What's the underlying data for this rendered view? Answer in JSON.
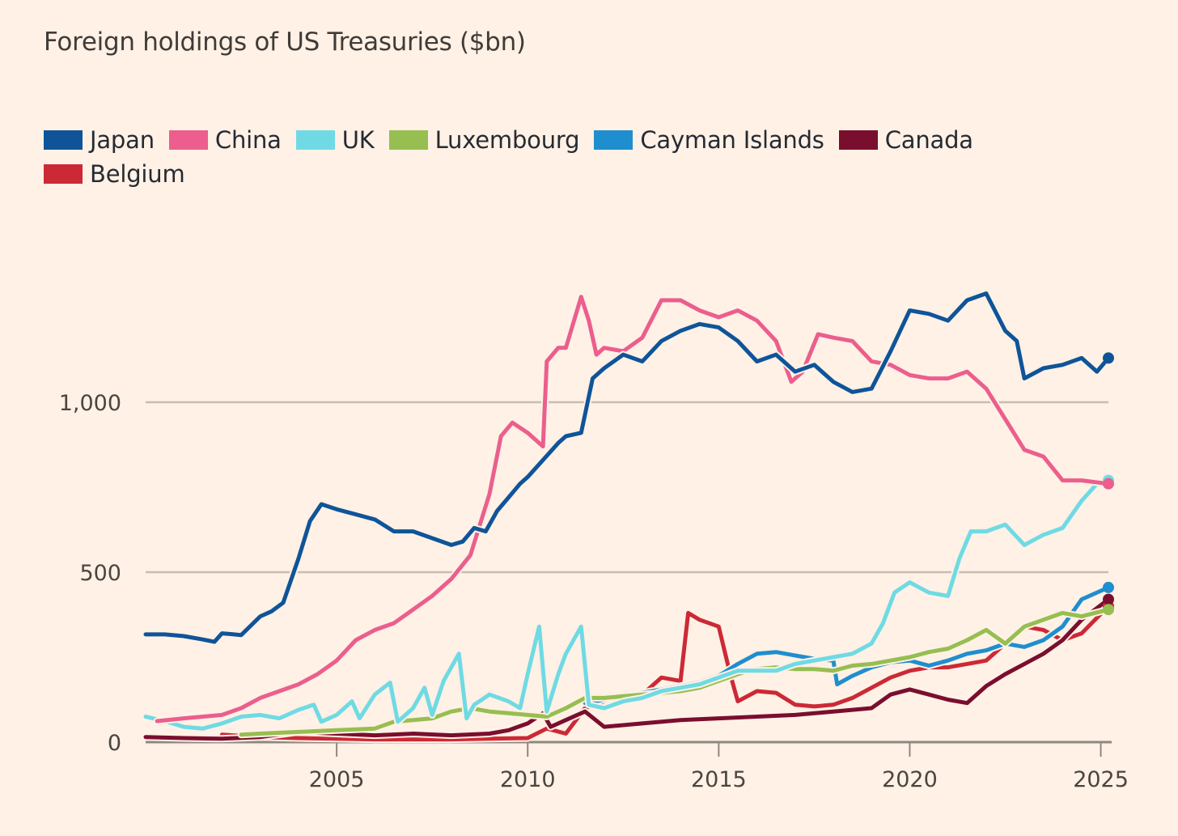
{
  "chart_data": {
    "type": "line",
    "title": "Foreign holdings of US Treasuries ($bn)",
    "xlabel": "",
    "ylabel": "",
    "xlim": [
      2000,
      2025.2
    ],
    "ylim": [
      0,
      1400
    ],
    "yticks": [
      0,
      500,
      1000
    ],
    "ytick_labels": [
      "0",
      "500",
      "1,000"
    ],
    "xticks": [
      2005,
      2010,
      2015,
      2020,
      2025
    ],
    "xtick_labels": [
      "2005",
      "2010",
      "2015",
      "2020",
      "2025"
    ],
    "grid": "horizontal",
    "legend_position": "top-left",
    "series": [
      {
        "name": "Japan",
        "color": "#0f5499",
        "x": [
          2000,
          2000.5,
          2001,
          2001.5,
          2001.8,
          2002,
          2002.2,
          2002.5,
          2003,
          2003.3,
          2003.6,
          2004,
          2004.3,
          2004.6,
          2005,
          2005.5,
          2006,
          2006.5,
          2007,
          2007.5,
          2008,
          2008.3,
          2008.6,
          2008.9,
          2009.2,
          2009.5,
          2009.8,
          2010,
          2010.4,
          2010.8,
          2011,
          2011.4,
          2011.7,
          2012,
          2012.5,
          2013,
          2013.5,
          2014,
          2014.5,
          2015,
          2015.5,
          2016,
          2016.5,
          2017,
          2017.5,
          2018,
          2018.5,
          2019,
          2019.5,
          2020,
          2020.5,
          2021,
          2021.5,
          2022,
          2022.5,
          2022.8,
          2023,
          2023.5,
          2024,
          2024.5,
          2024.9,
          2025.2
        ],
        "y": [
          317,
          317,
          312,
          302,
          295,
          320,
          318,
          315,
          370,
          385,
          410,
          540,
          650,
          700,
          685,
          670,
          655,
          620,
          620,
          600,
          580,
          590,
          630,
          620,
          680,
          720,
          760,
          780,
          830,
          880,
          900,
          910,
          1070,
          1100,
          1140,
          1120,
          1180,
          1210,
          1230,
          1220,
          1180,
          1120,
          1140,
          1090,
          1110,
          1060,
          1030,
          1040,
          1150,
          1270,
          1260,
          1240,
          1300,
          1320,
          1210,
          1180,
          1070,
          1100,
          1110,
          1130,
          1090,
          1130
        ]
      },
      {
        "name": "China",
        "color": "#eb5e8d",
        "x": [
          2000.3,
          2001,
          2001.5,
          2002,
          2002.5,
          2003,
          2003.5,
          2004,
          2004.5,
          2005,
          2005.5,
          2006,
          2006.5,
          2007,
          2007.5,
          2008,
          2008.5,
          2009,
          2009.3,
          2009.6,
          2010,
          2010.4,
          2010.5,
          2010.8,
          2011,
          2011.4,
          2011.6,
          2011.8,
          2012,
          2012.5,
          2013,
          2013.5,
          2014,
          2014.5,
          2015,
          2015.5,
          2016,
          2016.5,
          2016.9,
          2017.2,
          2017.6,
          2018,
          2018.5,
          2019,
          2019.5,
          2020,
          2020.5,
          2021,
          2021.5,
          2022,
          2022.5,
          2023,
          2023.5,
          2024,
          2024.5,
          2025.2
        ],
        "y": [
          62,
          70,
          75,
          80,
          100,
          130,
          150,
          170,
          200,
          240,
          300,
          330,
          350,
          390,
          430,
          480,
          550,
          730,
          900,
          940,
          910,
          870,
          1120,
          1160,
          1160,
          1310,
          1240,
          1140,
          1160,
          1150,
          1190,
          1300,
          1300,
          1270,
          1250,
          1270,
          1240,
          1180,
          1060,
          1090,
          1200,
          1190,
          1180,
          1120,
          1110,
          1080,
          1070,
          1070,
          1090,
          1040,
          950,
          860,
          840,
          770,
          770,
          760
        ]
      },
      {
        "name": "UK",
        "color": "#6fdae4",
        "x": [
          2000,
          2000.5,
          2001,
          2001.5,
          2002,
          2002.5,
          2003,
          2003.5,
          2004,
          2004.4,
          2004.6,
          2005,
          2005.4,
          2005.6,
          2006,
          2006.4,
          2006.6,
          2007,
          2007.3,
          2007.5,
          2007.8,
          2008.2,
          2008.4,
          2008.6,
          2009,
          2009.5,
          2009.8,
          2010,
          2010.3,
          2010.5,
          2010.8,
          2011,
          2011.4,
          2011.6,
          2012,
          2012.5,
          2013,
          2013.5,
          2014,
          2014.5,
          2015,
          2015.5,
          2016,
          2016.5,
          2017,
          2017.5,
          2018,
          2018.5,
          2019,
          2019.3,
          2019.6,
          2020,
          2020.5,
          2021,
          2021.3,
          2021.6,
          2022,
          2022.5,
          2023,
          2023.5,
          2024,
          2024.5,
          2024.9,
          2025.2
        ],
        "y": [
          75,
          62,
          45,
          40,
          55,
          75,
          80,
          70,
          95,
          110,
          60,
          80,
          120,
          70,
          140,
          175,
          60,
          100,
          160,
          80,
          180,
          260,
          70,
          110,
          140,
          120,
          100,
          200,
          340,
          90,
          200,
          260,
          340,
          110,
          100,
          120,
          130,
          150,
          160,
          170,
          190,
          210,
          210,
          210,
          230,
          240,
          250,
          260,
          290,
          350,
          440,
          470,
          440,
          430,
          540,
          620,
          620,
          640,
          580,
          610,
          630,
          710,
          760,
          770
        ]
      },
      {
        "name": "Luxembourg",
        "color": "#96be51",
        "x": [
          2002.5,
          2003,
          2004,
          2005,
          2006,
          2006.5,
          2007,
          2007.5,
          2008,
          2008.5,
          2009,
          2009.5,
          2010,
          2010.5,
          2011,
          2011.5,
          2012,
          2012.5,
          2013,
          2013.5,
          2014,
          2014.5,
          2015,
          2015.5,
          2016,
          2016.5,
          2017,
          2017.5,
          2018,
          2018.5,
          2019,
          2019.5,
          2020,
          2020.5,
          2021,
          2021.5,
          2022,
          2022.5,
          2023,
          2023.5,
          2024,
          2024.5,
          2025.2
        ],
        "y": [
          22,
          25,
          30,
          35,
          40,
          60,
          65,
          70,
          90,
          100,
          90,
          85,
          80,
          75,
          100,
          130,
          130,
          135,
          140,
          145,
          150,
          160,
          180,
          200,
          215,
          220,
          215,
          215,
          210,
          225,
          230,
          240,
          250,
          265,
          275,
          300,
          330,
          290,
          340,
          360,
          380,
          370,
          390
        ]
      },
      {
        "name": "Cayman Islands",
        "color": "#1f8ece",
        "x": [
          2011.5,
          2012,
          2012.5,
          2013,
          2013.5,
          2014,
          2014.5,
          2015,
          2015.5,
          2016,
          2016.5,
          2017,
          2017.5,
          2018,
          2018.1,
          2018.5,
          2019,
          2019.5,
          2020,
          2020.5,
          2021,
          2021.5,
          2022,
          2022.5,
          2023,
          2023.5,
          2024,
          2024.5,
          2025.2
        ],
        "y": [
          115,
          125,
          135,
          145,
          155,
          165,
          175,
          195,
          230,
          260,
          265,
          255,
          245,
          240,
          170,
          195,
          220,
          235,
          240,
          225,
          240,
          260,
          270,
          290,
          280,
          300,
          340,
          420,
          455
        ]
      },
      {
        "name": "Canada",
        "color": "#7a0e2f",
        "x": [
          2000,
          2001,
          2002,
          2003,
          2004,
          2005,
          2006,
          2007,
          2008,
          2009,
          2009.5,
          2010,
          2010.4,
          2010.6,
          2011,
          2011.5,
          2012,
          2013,
          2014,
          2015,
          2016,
          2017,
          2018,
          2019,
          2019.5,
          2020,
          2020.5,
          2021,
          2021.5,
          2022,
          2022.5,
          2023,
          2023.5,
          2024,
          2024.5,
          2025.2
        ],
        "y": [
          15,
          12,
          10,
          15,
          30,
          25,
          20,
          25,
          20,
          25,
          35,
          55,
          85,
          45,
          65,
          90,
          45,
          55,
          65,
          70,
          75,
          80,
          90,
          100,
          140,
          155,
          140,
          125,
          115,
          165,
          200,
          230,
          260,
          300,
          360,
          420
        ]
      },
      {
        "name": "Belgium",
        "color": "#cc2936",
        "x": [
          2002,
          2003,
          2004,
          2005,
          2006,
          2007,
          2008,
          2009,
          2010,
          2010.5,
          2011,
          2011.5,
          2012,
          2012.5,
          2013,
          2013.5,
          2014,
          2014.2,
          2014.5,
          2015,
          2015.3,
          2015.5,
          2016,
          2016.5,
          2017,
          2017.5,
          2018,
          2018.5,
          2019,
          2019.5,
          2020,
          2020.5,
          2021,
          2021.5,
          2022,
          2022.5,
          2023,
          2023.5,
          2024,
          2024.5,
          2025.2
        ],
        "y": [
          22,
          15,
          12,
          10,
          8,
          8,
          8,
          10,
          12,
          40,
          25,
          100,
          120,
          135,
          140,
          190,
          180,
          380,
          360,
          340,
          200,
          120,
          150,
          145,
          110,
          105,
          110,
          130,
          160,
          190,
          210,
          220,
          220,
          230,
          240,
          290,
          340,
          330,
          300,
          320,
          400
        ]
      }
    ]
  }
}
